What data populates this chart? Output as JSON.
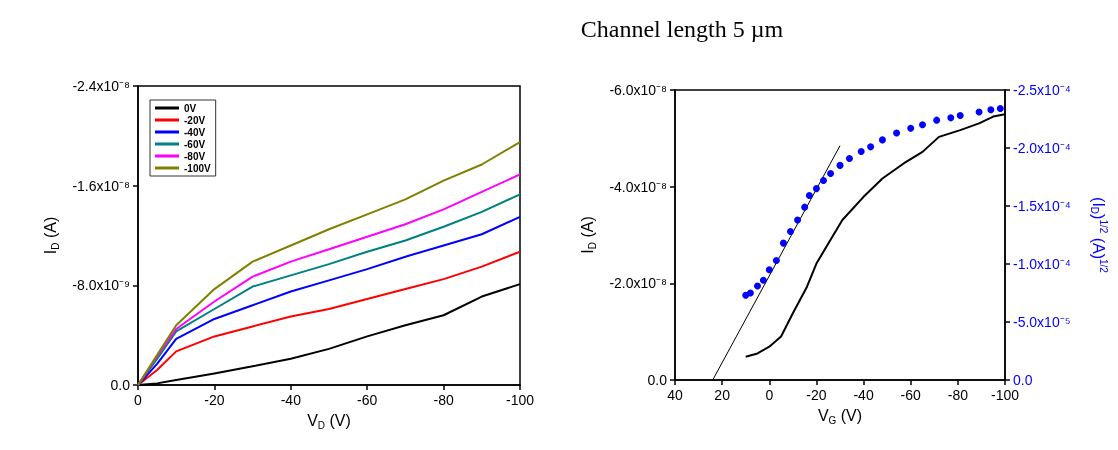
{
  "chart_data": [
    {
      "type": "line",
      "xlabel": "V$_{D}$ (V)",
      "ylabel": "I$_{D}$ (A)",
      "legend": "top left",
      "xlim": [
        0,
        -100
      ],
      "xticks": [
        0,
        -20,
        -40,
        -60,
        -80,
        -100
      ],
      "ylim": [
        0,
        -2.4e-08
      ],
      "yticks": [
        {
          "value": 0,
          "label": "0.0"
        },
        {
          "value": -8e-09,
          "label": "-8.0x10⁻⁹"
        },
        {
          "value": -1.6e-08,
          "label": "-1.6x10⁻⁸"
        },
        {
          "value": -2.4e-08,
          "label": "-2.4x10⁻⁸"
        }
      ],
      "x": [
        0,
        -5,
        -10,
        -20,
        -30,
        -40,
        -50,
        -60,
        -70,
        -80,
        -90,
        -100
      ],
      "series": [
        {
          "name": "0V",
          "color": "#000000",
          "values": [
            0,
            -1.3e-10,
            -4e-10,
            -9.3e-10,
            -1.5e-09,
            -2.1e-09,
            -2.9e-09,
            -3.9e-09,
            -4.8e-09,
            -5.6e-09,
            -7.1e-09,
            -8.1e-09
          ]
        },
        {
          "name": "-20V",
          "color": "#ff0000",
          "values": [
            0,
            -1.2e-09,
            -2.7e-09,
            -3.9e-09,
            -4.7e-09,
            -5.5e-09,
            -6.1e-09,
            -6.9e-09,
            -7.7e-09,
            -8.5e-09,
            -9.5e-09,
            -1.07e-08
          ]
        },
        {
          "name": "-40V",
          "color": "#0000ff",
          "values": [
            0,
            -1.7e-09,
            -3.7e-09,
            -5.3e-09,
            -6.4e-09,
            -7.5e-09,
            -8.4e-09,
            -9.3e-09,
            -1.03e-08,
            -1.12e-08,
            -1.21e-08,
            -1.35e-08
          ]
        },
        {
          "name": "-60V",
          "color": "#008080",
          "values": [
            0,
            -2.1e-09,
            -4.3e-09,
            -6.1e-09,
            -7.9e-09,
            -8.8e-09,
            -9.7e-09,
            -1.07e-08,
            -1.16e-08,
            -1.27e-08,
            -1.39e-08,
            -1.53e-08
          ]
        },
        {
          "name": "-80V",
          "color": "#ff00ff",
          "values": [
            0,
            -2.3e-09,
            -4.5e-09,
            -6.7e-09,
            -8.7e-09,
            -9.9e-09,
            -1.09e-08,
            -1.19e-08,
            -1.29e-08,
            -1.41e-08,
            -1.55e-08,
            -1.69e-08
          ]
        },
        {
          "name": "-100V",
          "color": "#808000",
          "values": [
            0,
            -2.4e-09,
            -4.8e-09,
            -7.7e-09,
            -9.9e-09,
            -1.12e-08,
            -1.25e-08,
            -1.37e-08,
            -1.49e-08,
            -1.64e-08,
            -1.77e-08,
            -1.95e-08
          ]
        }
      ]
    },
    {
      "type": "line",
      "title": "Channel length 5 µm",
      "xlabel": "V$_{G}$ (V)",
      "ylabel": "I$_{D}$ (A)",
      "y2label": "(I$_{D}$)$^{1/2}$ (A)$^{1/2}$",
      "xlim": [
        40,
        -100
      ],
      "xticks": [
        40,
        20,
        0,
        -20,
        -40,
        -60,
        -80,
        -100
      ],
      "ylim": [
        0,
        -6e-08
      ],
      "yticks": [
        {
          "value": 0,
          "label": "0.0"
        },
        {
          "value": -2e-08,
          "label": "-2.0x10⁻⁸"
        },
        {
          "value": -4e-08,
          "label": "-4.0x10⁻⁸"
        },
        {
          "value": -6e-08,
          "label": "-6.0x10⁻⁸"
        }
      ],
      "y2lim": [
        0,
        -0.00025
      ],
      "y2ticks": [
        {
          "value": 0,
          "label": "0.0"
        },
        {
          "value": -5e-05,
          "label": "-5.0x10⁻⁵"
        },
        {
          "value": -0.0001,
          "label": "-1.0x10⁻⁴"
        },
        {
          "value": -0.00015,
          "label": "-1.5x10⁻⁴"
        },
        {
          "value": -0.0002,
          "label": "-2.0x10⁻⁴"
        },
        {
          "value": -0.00025,
          "label": "-2.5x10⁻⁴"
        }
      ],
      "series": [
        {
          "type": "line",
          "color": "#000000",
          "x": [
            10,
            5,
            0,
            -5,
            -10,
            -16,
            -20,
            -26,
            -31,
            -40,
            -48,
            -57,
            -65,
            -72,
            -81,
            -89,
            -95,
            -100
          ],
          "values": [
            -4.8e-09,
            -5.5e-09,
            -6.9e-09,
            -9e-09,
            -1.38e-08,
            -1.93e-08,
            -2.41e-08,
            -2.9e-08,
            -3.31e-08,
            -3.79e-08,
            -4.17e-08,
            -4.48e-08,
            -4.72e-08,
            -5.03e-08,
            -5.17e-08,
            -5.31e-08,
            -5.45e-08,
            -5.5e-08
          ]
        },
        {
          "type": "scatter",
          "axis": "y2",
          "color": "#0000ff",
          "x": [
            10,
            8,
            5,
            2.5,
            0,
            -3,
            -6,
            -9,
            -12,
            -15,
            -17,
            -20,
            -23,
            -26,
            -30,
            -34,
            -39,
            -43,
            -48,
            -54,
            -60,
            -65,
            -71,
            -77,
            -81,
            -89,
            -94,
            -98
          ],
          "values": [
            -7.3e-05,
            -7.5e-05,
            -8.1e-05,
            -8.6e-05,
            -9.5e-05,
            -0.000103,
            -0.000118,
            -0.000128,
            -0.000138,
            -0.000149,
            -0.000159,
            -0.000165,
            -0.000172,
            -0.000178,
            -0.000185,
            -0.000191,
            -0.000197,
            -0.000201,
            -0.000207,
            -0.000213,
            -0.000217,
            -0.00022,
            -0.000224,
            -0.000226,
            -0.000228,
            -0.000231,
            -0.000233,
            -0.000234
          ]
        },
        {
          "type": "line",
          "axis": "y2",
          "color": "#000000",
          "x": [
            24,
            -30
          ],
          "values": [
            0,
            -0.000202
          ]
        }
      ]
    }
  ]
}
